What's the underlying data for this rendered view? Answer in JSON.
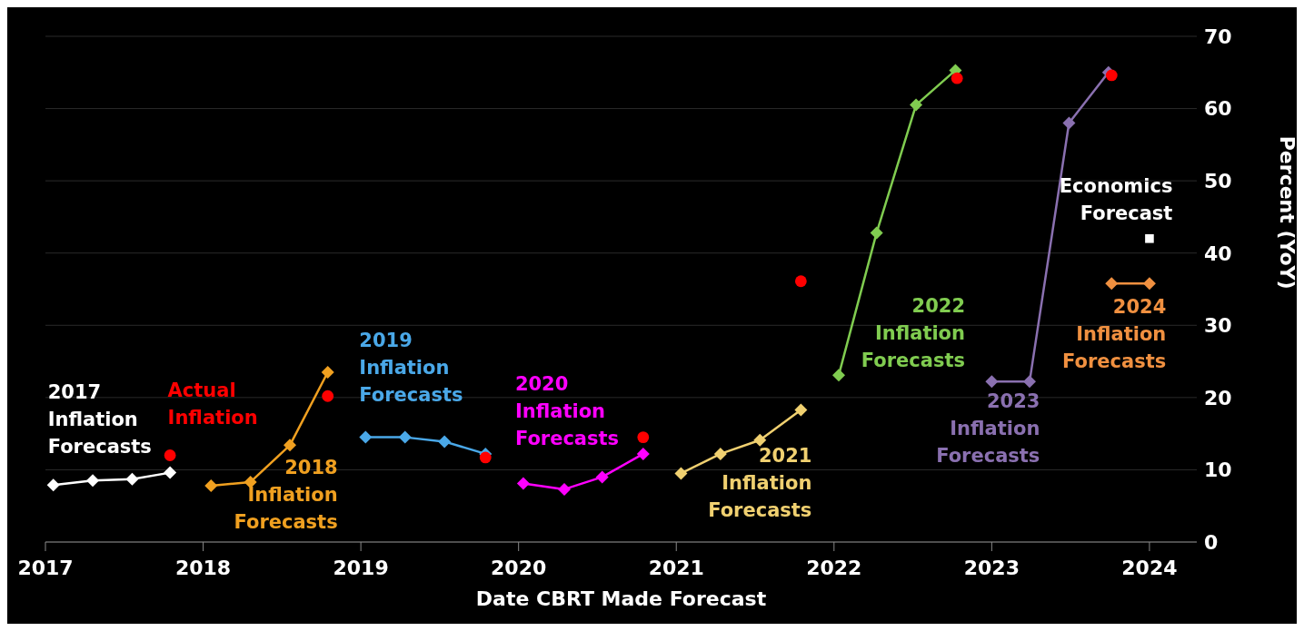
{
  "chart_data": {
    "type": "line",
    "xlabel": "Date CBRT Made Forecast",
    "ylabel": "Percent (YoY)",
    "xlim": [
      2017,
      2024.3
    ],
    "xticks": [
      2017,
      2018,
      2019,
      2020,
      2021,
      2022,
      2023,
      2024
    ],
    "ylim": [
      0,
      70
    ],
    "yticks": [
      0,
      10,
      20,
      30,
      40,
      50,
      60,
      70
    ],
    "grid": "y",
    "legend": false,
    "marker": "diamond",
    "line_style": "solid",
    "series": [
      {
        "name": "Actual Inflation",
        "type": "scatter",
        "marker": "circle",
        "color": "#ff0000",
        "x": [
          2017.79,
          2018.79,
          2019.79,
          2020.79,
          2021.79,
          2022.78,
          2023.76
        ],
        "values": [
          12.0,
          20.2,
          11.7,
          14.5,
          36.1,
          64.2,
          64.6
        ]
      },
      {
        "name": "2017 Inflation Forecasts",
        "color": "#ffffff",
        "x": [
          2017.05,
          2017.3,
          2017.55,
          2017.79
        ],
        "values": [
          7.9,
          8.5,
          8.7,
          9.6
        ]
      },
      {
        "name": "2018 Inflation Forecasts",
        "color": "#f0a020",
        "x": [
          2018.05,
          2018.3,
          2018.55,
          2018.79
        ],
        "values": [
          7.8,
          8.3,
          13.4,
          23.5
        ]
      },
      {
        "name": "2019 Inflation Forecasts",
        "color": "#4aa8e8",
        "x": [
          2019.03,
          2019.28,
          2019.53,
          2019.79
        ],
        "values": [
          14.5,
          14.5,
          13.9,
          12.2
        ]
      },
      {
        "name": "2020 Inflation Forecasts",
        "color": "#ff00ff",
        "x": [
          2020.03,
          2020.29,
          2020.53,
          2020.79
        ],
        "values": [
          8.1,
          7.3,
          9.0,
          12.2
        ]
      },
      {
        "name": "2021 Inflation Forecasts",
        "color": "#f0d070",
        "x": [
          2021.03,
          2021.28,
          2021.53,
          2021.79
        ],
        "values": [
          9.5,
          12.2,
          14.1,
          18.3
        ]
      },
      {
        "name": "2022 Inflation Forecasts",
        "color": "#80cc50",
        "x": [
          2022.03,
          2022.27,
          2022.52,
          2022.77
        ],
        "values": [
          23.1,
          42.8,
          60.5,
          65.3
        ]
      },
      {
        "name": "2023 Inflation Forecasts",
        "color": "#8a70b0",
        "x": [
          2023.0,
          2023.24,
          2023.49,
          2023.74
        ],
        "values": [
          22.2,
          22.2,
          58.0,
          65.0
        ]
      },
      {
        "name": "Economics Forecast",
        "type": "scatter",
        "marker": "square",
        "color": "#ffffff",
        "x": [
          2024.0
        ],
        "values": [
          42.0
        ]
      },
      {
        "name": "2024 Inflation Forecasts",
        "color": "#f09040",
        "x": [
          2023.76,
          2024.0
        ],
        "values": [
          35.8,
          35.8
        ]
      }
    ]
  }
}
